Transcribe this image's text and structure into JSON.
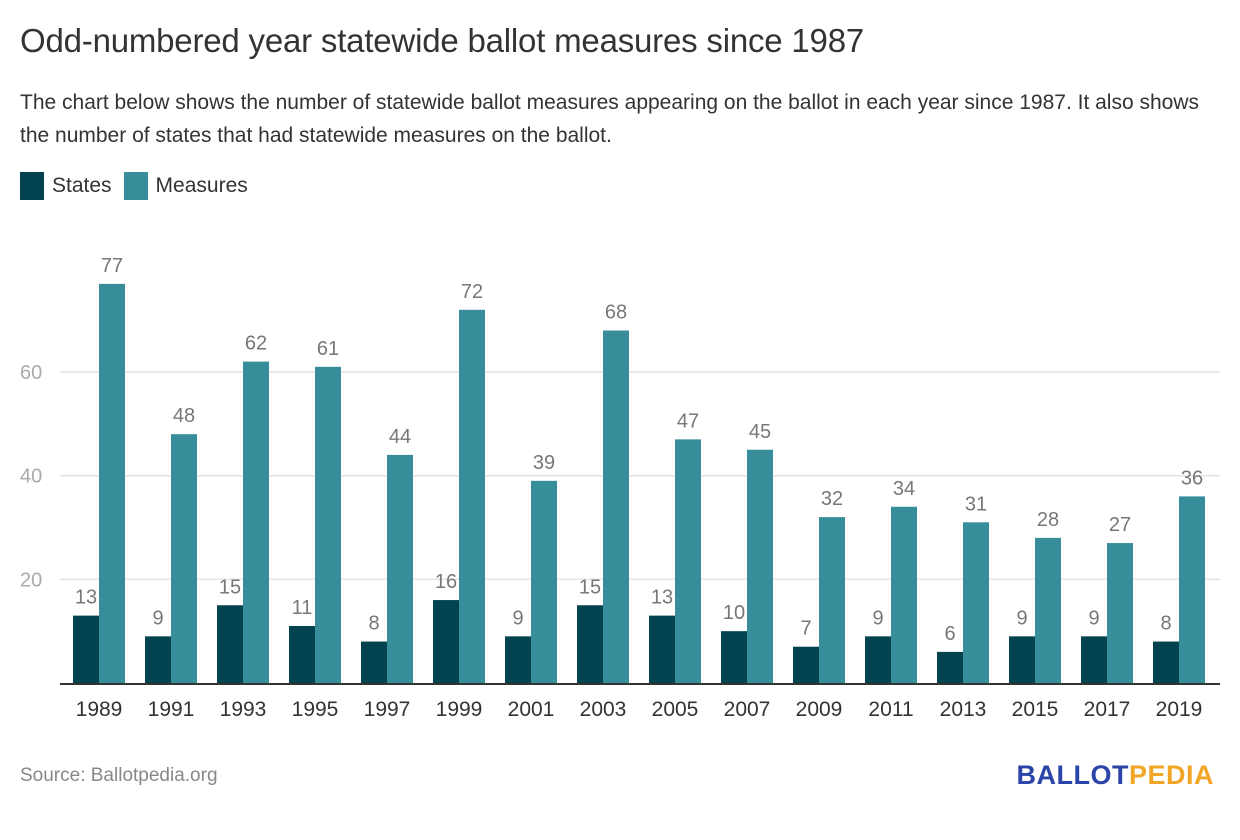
{
  "header": {
    "title": "Odd-numbered year statewide ballot measures since 1987",
    "subtitle": "The chart below shows the number of statewide ballot measures appearing on the ballot in each year since 1987. It also shows the number of states that had statewide measures on the ballot."
  },
  "legend": {
    "items": [
      {
        "label": "States",
        "color": "#03434f"
      },
      {
        "label": "Measures",
        "color": "#378d99"
      }
    ]
  },
  "footer": {
    "source": "Source: Ballotpedia.org",
    "logo_part1": "BALLOT",
    "logo_part2": "PEDIA"
  },
  "chart_data": {
    "type": "bar",
    "title": "Odd-numbered year statewide ballot measures since 1987",
    "xlabel": "",
    "ylabel": "",
    "categories": [
      "1989",
      "1991",
      "1993",
      "1995",
      "1997",
      "1999",
      "2001",
      "2003",
      "2005",
      "2007",
      "2009",
      "2011",
      "2013",
      "2015",
      "2017",
      "2019"
    ],
    "series": [
      {
        "name": "States",
        "color": "#03434f",
        "values": [
          13,
          9,
          15,
          11,
          8,
          16,
          9,
          15,
          13,
          10,
          7,
          9,
          6,
          9,
          9,
          8
        ]
      },
      {
        "name": "Measures",
        "color": "#378d99",
        "values": [
          77,
          48,
          62,
          61,
          44,
          72,
          39,
          68,
          47,
          45,
          32,
          34,
          31,
          28,
          27,
          36
        ]
      }
    ],
    "yticks": [
      20,
      40,
      60
    ],
    "ylim": [
      0,
      80
    ],
    "grid": true,
    "legend_position": "top-left",
    "data_labels": true
  }
}
